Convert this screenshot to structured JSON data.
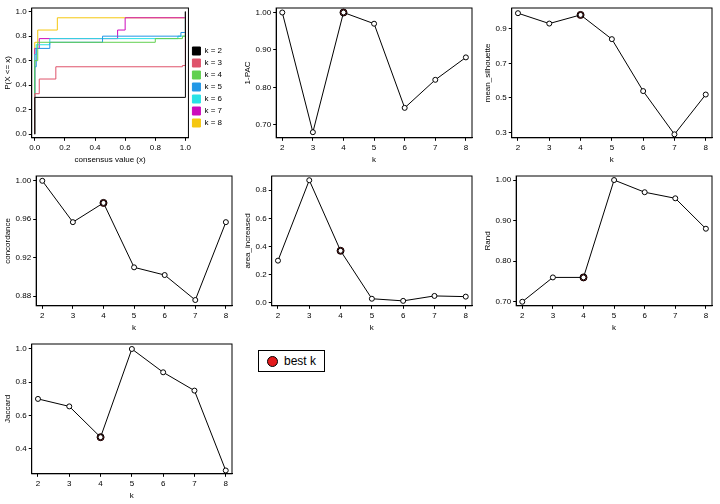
{
  "chart_data": [
    {
      "type": "line",
      "x_label": "consensus value (x)",
      "y_label": "P(X <= x)",
      "xlim": [
        -0.02,
        1.02
      ],
      "ylim": [
        -0.03,
        1.03
      ],
      "xticks": [
        {
          "value": 0,
          "label": "0.0"
        },
        0.2,
        0.4,
        0.6,
        0.8,
        {
          "value": 1,
          "label": "1.0"
        }
      ],
      "yticks": [
        {
          "value": 0,
          "label": "0.0"
        },
        0.2,
        0.4,
        0.6,
        0.8,
        {
          "value": 1,
          "label": "1.0"
        }
      ],
      "legend": "right",
      "line_style": "step",
      "series": [
        {
          "name": "k = 2",
          "color": "#000000",
          "x": [
            0,
            0,
            1
          ],
          "values": [
            0,
            0.3,
            1
          ]
        },
        {
          "name": "k = 3",
          "color": "#DF536B",
          "x": [
            0,
            0,
            0.03,
            0.14,
            0.98,
            1
          ],
          "values": [
            0,
            0.33,
            0.45,
            0.55,
            0.56,
            1
          ]
        },
        {
          "name": "k = 4",
          "color": "#61D04F",
          "x": [
            0,
            0,
            0.02,
            0.8,
            0.98,
            1
          ],
          "values": [
            0,
            0.6,
            0.75,
            0.78,
            0.8,
            1
          ]
        },
        {
          "name": "k = 5",
          "color": "#2297E6",
          "x": [
            0,
            0,
            0.01,
            0.1,
            0.45,
            0.97,
            1
          ],
          "values": [
            0,
            0.55,
            0.7,
            0.75,
            0.8,
            0.83,
            1
          ]
        },
        {
          "name": "k = 6",
          "color": "#28E2E5",
          "x": [
            0,
            0,
            0.01,
            0.1,
            0.95,
            1
          ],
          "values": [
            0,
            0.65,
            0.73,
            0.78,
            0.8,
            1
          ]
        },
        {
          "name": "k = 7",
          "color": "#CD0BBC",
          "x": [
            0,
            0,
            0.03,
            0.55,
            0.6,
            1
          ],
          "values": [
            0,
            0.7,
            0.78,
            0.85,
            0.95,
            1
          ]
        },
        {
          "name": "k = 8",
          "color": "#F5C710",
          "x": [
            0,
            0,
            0.02,
            0.15,
            1
          ],
          "values": [
            0,
            0.75,
            0.85,
            0.95,
            1
          ]
        }
      ]
    },
    {
      "type": "line",
      "x_label": "k",
      "y_label": "1-PAC",
      "x": [
        2,
        3,
        4,
        5,
        6,
        7,
        8
      ],
      "xlim": [
        1.8,
        8.2
      ],
      "xticks": [
        2,
        3,
        4,
        5,
        6,
        7,
        8
      ],
      "ylim": [
        0.665,
        1.012
      ],
      "yticks": [
        {
          "value": 0.7,
          "label": "0.70"
        },
        {
          "value": 0.8,
          "label": "0.80"
        },
        {
          "value": 0.9,
          "label": "0.90"
        },
        {
          "value": 1,
          "label": "1.00"
        }
      ],
      "series": [
        {
          "color": "#000000",
          "marker": "open circle",
          "values": [
            1.0,
            0.68,
            1.0,
            0.97,
            0.745,
            0.82,
            0.88
          ]
        },
        {
          "name": "best k",
          "type": "scatter",
          "color": "#E31A1C",
          "marker": "filled circle",
          "values": [
            null,
            null,
            1.0,
            null,
            null,
            null,
            null
          ]
        }
      ]
    },
    {
      "type": "line",
      "x_label": "k",
      "y_label": "mean_silhouette",
      "x": [
        2,
        3,
        4,
        5,
        6,
        7,
        8
      ],
      "xlim": [
        1.8,
        8.2
      ],
      "xticks": [
        2,
        3,
        4,
        5,
        6,
        7,
        8
      ],
      "ylim": [
        0.27,
        1.02
      ],
      "yticks": [
        0.3,
        0.5,
        0.7,
        0.9
      ],
      "series": [
        {
          "color": "#000000",
          "marker": "open circle",
          "values": [
            0.99,
            0.93,
            0.98,
            0.84,
            0.54,
            0.29,
            0.52
          ]
        },
        {
          "name": "best k",
          "type": "scatter",
          "color": "#E31A1C",
          "marker": "filled circle",
          "values": [
            null,
            null,
            0.98,
            null,
            null,
            null,
            null
          ]
        }
      ]
    },
    {
      "type": "line",
      "x_label": "k",
      "y_label": "concordance",
      "x": [
        2,
        3,
        4,
        5,
        6,
        7,
        8
      ],
      "xlim": [
        1.8,
        8.2
      ],
      "xticks": [
        2,
        3,
        4,
        5,
        6,
        7,
        8
      ],
      "ylim": [
        0.87,
        1.005
      ],
      "yticks": [
        0.88,
        0.92,
        0.96,
        {
          "value": 1,
          "label": "1.00"
        }
      ],
      "series": [
        {
          "color": "#000000",
          "marker": "open circle",
          "values": [
            1.0,
            0.957,
            0.977,
            0.91,
            0.902,
            0.876,
            0.957
          ]
        },
        {
          "name": "best k",
          "type": "scatter",
          "color": "#E31A1C",
          "marker": "filled circle",
          "values": [
            null,
            null,
            0.977,
            null,
            null,
            null,
            null
          ]
        }
      ]
    },
    {
      "type": "line",
      "x_label": "k",
      "y_label": "area_increased",
      "x": [
        2,
        3,
        4,
        5,
        6,
        7,
        8
      ],
      "xlim": [
        1.8,
        8.2
      ],
      "xticks": [
        2,
        3,
        4,
        5,
        6,
        7,
        8
      ],
      "ylim": [
        -0.02,
        0.9
      ],
      "yticks": [
        {
          "value": 0,
          "label": "0.0"
        },
        0.2,
        0.4,
        0.6,
        0.8
      ],
      "series": [
        {
          "color": "#000000",
          "marker": "open circle",
          "values": [
            0.3,
            0.87,
            0.37,
            0.03,
            0.015,
            0.05,
            0.045
          ]
        },
        {
          "name": "best k",
          "type": "scatter",
          "color": "#E31A1C",
          "marker": "filled circle",
          "values": [
            null,
            null,
            0.37,
            null,
            null,
            null,
            null
          ]
        }
      ]
    },
    {
      "type": "line",
      "x_label": "k",
      "y_label": "Rand",
      "x": [
        2,
        3,
        4,
        5,
        6,
        7,
        8
      ],
      "xlim": [
        1.8,
        8.2
      ],
      "xticks": [
        2,
        3,
        4,
        5,
        6,
        7,
        8
      ],
      "ylim": [
        0.69,
        1.01
      ],
      "yticks": [
        {
          "value": 0.7,
          "label": "0.70"
        },
        {
          "value": 0.8,
          "label": "0.80"
        },
        {
          "value": 0.9,
          "label": "0.90"
        },
        {
          "value": 1,
          "label": "1.00"
        }
      ],
      "series": [
        {
          "color": "#000000",
          "marker": "open circle",
          "values": [
            0.7,
            0.76,
            0.76,
            1.0,
            0.97,
            0.955,
            0.88
          ]
        },
        {
          "name": "best k",
          "type": "scatter",
          "color": "#E31A1C",
          "marker": "filled circle",
          "values": [
            null,
            null,
            0.76,
            null,
            null,
            null,
            null
          ]
        }
      ]
    },
    {
      "type": "line",
      "x_label": "k",
      "y_label": "Jaccard",
      "x": [
        2,
        3,
        4,
        5,
        6,
        7,
        8
      ],
      "xlim": [
        1.8,
        8.2
      ],
      "xticks": [
        2,
        3,
        4,
        5,
        6,
        7,
        8
      ],
      "ylim": [
        0.25,
        1.03
      ],
      "yticks": [
        0.4,
        0.6,
        0.8,
        {
          "value": 1,
          "label": "1.0"
        }
      ],
      "series": [
        {
          "color": "#000000",
          "marker": "open circle",
          "values": [
            0.7,
            0.655,
            0.47,
            1.0,
            0.86,
            0.75,
            0.27
          ]
        },
        {
          "name": "best k",
          "type": "scatter",
          "color": "#E31A1C",
          "marker": "filled circle",
          "values": [
            null,
            null,
            0.47,
            null,
            null,
            null,
            null
          ]
        }
      ]
    }
  ]
}
